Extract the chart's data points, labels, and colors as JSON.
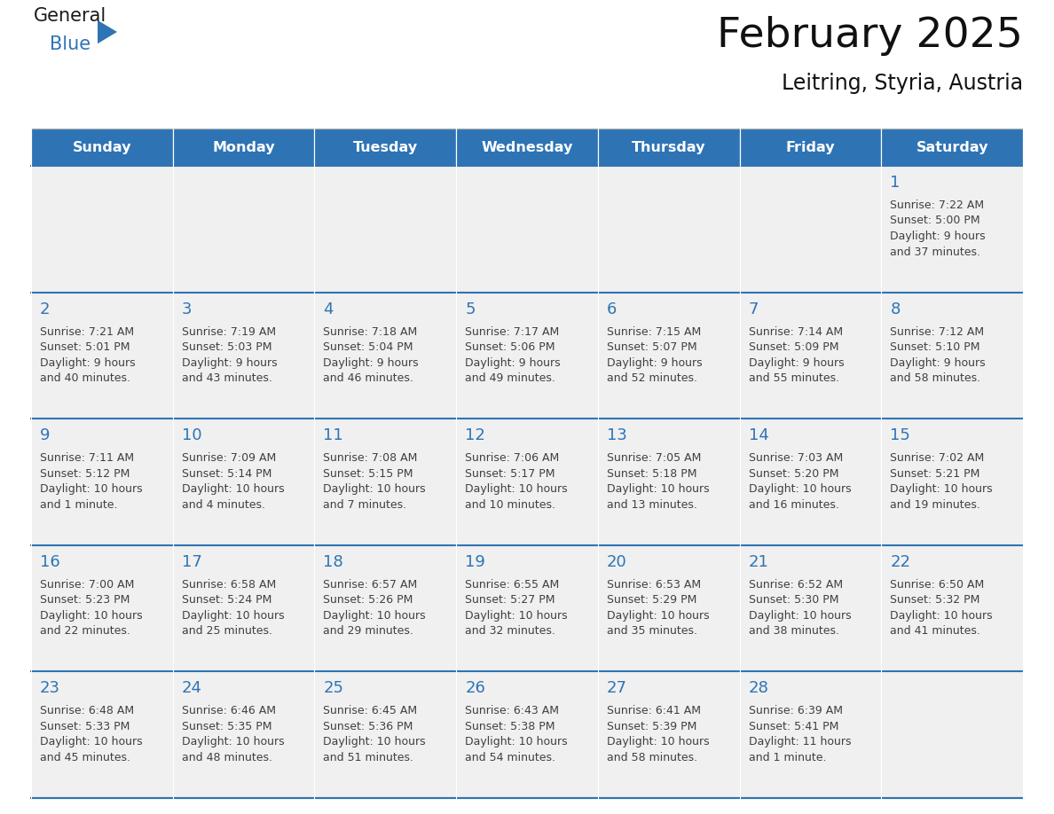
{
  "title": "February 2025",
  "subtitle": "Leitring, Styria, Austria",
  "header_bg": "#2E74B5",
  "header_text_color": "#FFFFFF",
  "cell_bg": "#F0F0F0",
  "day_number_color": "#2E74B5",
  "text_color": "#404040",
  "row_line_color": "#2E74B5",
  "days_of_week": [
    "Sunday",
    "Monday",
    "Tuesday",
    "Wednesday",
    "Thursday",
    "Friday",
    "Saturday"
  ],
  "logo_general_color": "#1a1a1a",
  "logo_blue_color": "#2E74B5",
  "calendar_data": [
    [
      null,
      null,
      null,
      null,
      null,
      null,
      {
        "day": "1",
        "sunrise": "7:22 AM",
        "sunset": "5:00 PM",
        "daylight1": "9 hours",
        "daylight2": "and 37 minutes."
      }
    ],
    [
      {
        "day": "2",
        "sunrise": "7:21 AM",
        "sunset": "5:01 PM",
        "daylight1": "9 hours",
        "daylight2": "and 40 minutes."
      },
      {
        "day": "3",
        "sunrise": "7:19 AM",
        "sunset": "5:03 PM",
        "daylight1": "9 hours",
        "daylight2": "and 43 minutes."
      },
      {
        "day": "4",
        "sunrise": "7:18 AM",
        "sunset": "5:04 PM",
        "daylight1": "9 hours",
        "daylight2": "and 46 minutes."
      },
      {
        "day": "5",
        "sunrise": "7:17 AM",
        "sunset": "5:06 PM",
        "daylight1": "9 hours",
        "daylight2": "and 49 minutes."
      },
      {
        "day": "6",
        "sunrise": "7:15 AM",
        "sunset": "5:07 PM",
        "daylight1": "9 hours",
        "daylight2": "and 52 minutes."
      },
      {
        "day": "7",
        "sunrise": "7:14 AM",
        "sunset": "5:09 PM",
        "daylight1": "9 hours",
        "daylight2": "and 55 minutes."
      },
      {
        "day": "8",
        "sunrise": "7:12 AM",
        "sunset": "5:10 PM",
        "daylight1": "9 hours",
        "daylight2": "and 58 minutes."
      }
    ],
    [
      {
        "day": "9",
        "sunrise": "7:11 AM",
        "sunset": "5:12 PM",
        "daylight1": "10 hours",
        "daylight2": "and 1 minute."
      },
      {
        "day": "10",
        "sunrise": "7:09 AM",
        "sunset": "5:14 PM",
        "daylight1": "10 hours",
        "daylight2": "and 4 minutes."
      },
      {
        "day": "11",
        "sunrise": "7:08 AM",
        "sunset": "5:15 PM",
        "daylight1": "10 hours",
        "daylight2": "and 7 minutes."
      },
      {
        "day": "12",
        "sunrise": "7:06 AM",
        "sunset": "5:17 PM",
        "daylight1": "10 hours",
        "daylight2": "and 10 minutes."
      },
      {
        "day": "13",
        "sunrise": "7:05 AM",
        "sunset": "5:18 PM",
        "daylight1": "10 hours",
        "daylight2": "and 13 minutes."
      },
      {
        "day": "14",
        "sunrise": "7:03 AM",
        "sunset": "5:20 PM",
        "daylight1": "10 hours",
        "daylight2": "and 16 minutes."
      },
      {
        "day": "15",
        "sunrise": "7:02 AM",
        "sunset": "5:21 PM",
        "daylight1": "10 hours",
        "daylight2": "and 19 minutes."
      }
    ],
    [
      {
        "day": "16",
        "sunrise": "7:00 AM",
        "sunset": "5:23 PM",
        "daylight1": "10 hours",
        "daylight2": "and 22 minutes."
      },
      {
        "day": "17",
        "sunrise": "6:58 AM",
        "sunset": "5:24 PM",
        "daylight1": "10 hours",
        "daylight2": "and 25 minutes."
      },
      {
        "day": "18",
        "sunrise": "6:57 AM",
        "sunset": "5:26 PM",
        "daylight1": "10 hours",
        "daylight2": "and 29 minutes."
      },
      {
        "day": "19",
        "sunrise": "6:55 AM",
        "sunset": "5:27 PM",
        "daylight1": "10 hours",
        "daylight2": "and 32 minutes."
      },
      {
        "day": "20",
        "sunrise": "6:53 AM",
        "sunset": "5:29 PM",
        "daylight1": "10 hours",
        "daylight2": "and 35 minutes."
      },
      {
        "day": "21",
        "sunrise": "6:52 AM",
        "sunset": "5:30 PM",
        "daylight1": "10 hours",
        "daylight2": "and 38 minutes."
      },
      {
        "day": "22",
        "sunrise": "6:50 AM",
        "sunset": "5:32 PM",
        "daylight1": "10 hours",
        "daylight2": "and 41 minutes."
      }
    ],
    [
      {
        "day": "23",
        "sunrise": "6:48 AM",
        "sunset": "5:33 PM",
        "daylight1": "10 hours",
        "daylight2": "and 45 minutes."
      },
      {
        "day": "24",
        "sunrise": "6:46 AM",
        "sunset": "5:35 PM",
        "daylight1": "10 hours",
        "daylight2": "and 48 minutes."
      },
      {
        "day": "25",
        "sunrise": "6:45 AM",
        "sunset": "5:36 PM",
        "daylight1": "10 hours",
        "daylight2": "and 51 minutes."
      },
      {
        "day": "26",
        "sunrise": "6:43 AM",
        "sunset": "5:38 PM",
        "daylight1": "10 hours",
        "daylight2": "and 54 minutes."
      },
      {
        "day": "27",
        "sunrise": "6:41 AM",
        "sunset": "5:39 PM",
        "daylight1": "10 hours",
        "daylight2": "and 58 minutes."
      },
      {
        "day": "28",
        "sunrise": "6:39 AM",
        "sunset": "5:41 PM",
        "daylight1": "11 hours",
        "daylight2": "and 1 minute."
      },
      null
    ]
  ]
}
